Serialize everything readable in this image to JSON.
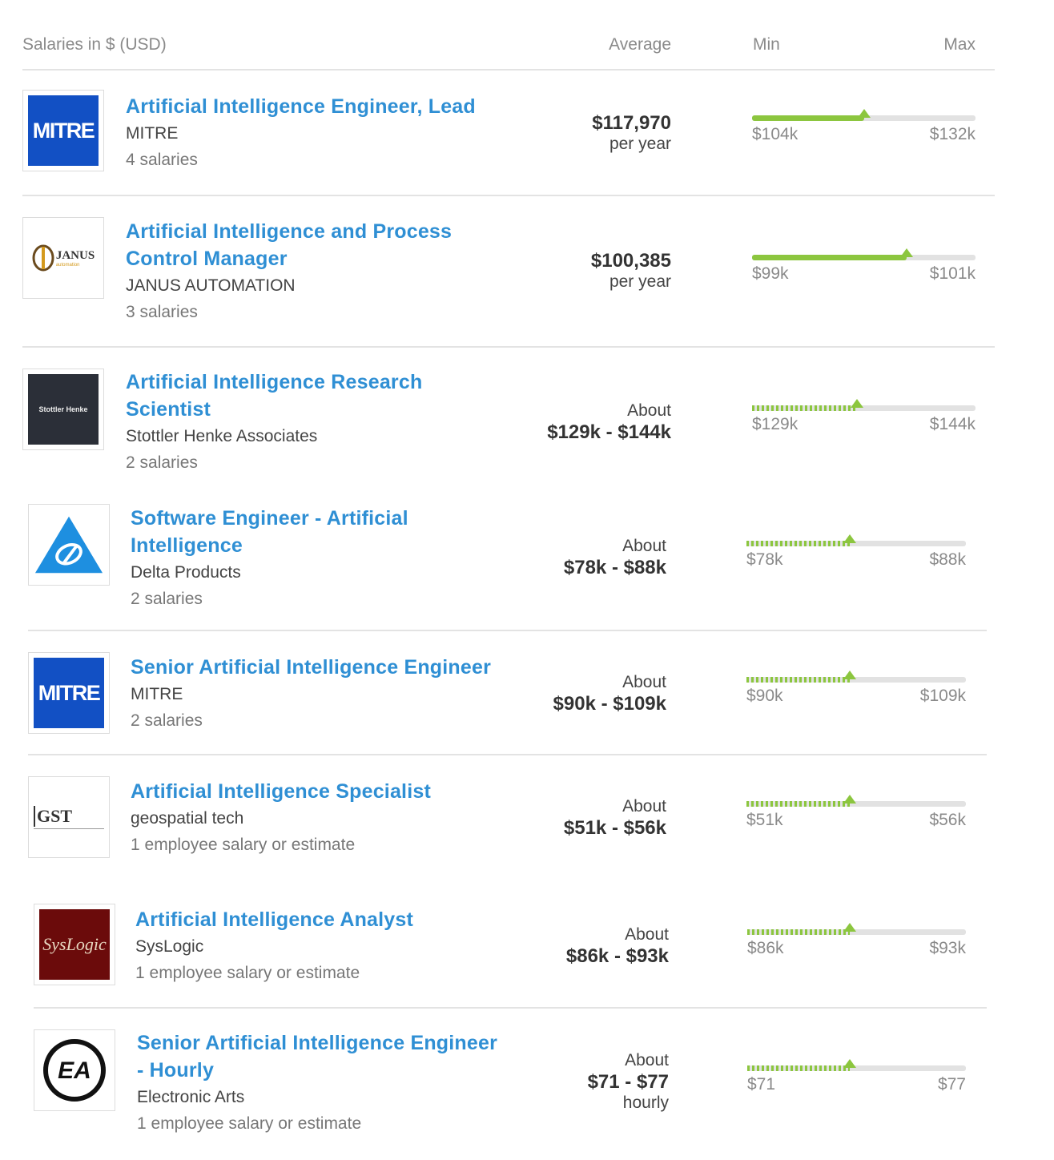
{
  "header": {
    "title": "Salaries in $ (USD)",
    "average": "Average",
    "min": "Min",
    "max": "Max"
  },
  "colors": {
    "link": "#2f8fd4",
    "bar_fill": "#8cc63f",
    "bar_track": "#e2e2e2",
    "separator": "#e3e3e3"
  },
  "rows": [
    {
      "title": [
        "Artificial Intelligence Engineer, Lead"
      ],
      "company": "MITRE",
      "count": "4 salaries",
      "about": "",
      "value": "$117,970",
      "per": "per year",
      "min": "$104k",
      "max": "$132k",
      "logo": {
        "text": "MITRE",
        "icon": "mitre-logo"
      },
      "bar": {
        "style": "solid",
        "marker": 0.5
      }
    },
    {
      "title": [
        "Artificial Intelligence and Process",
        "Control Manager"
      ],
      "company": "JANUS AUTOMATION",
      "count": "3 salaries",
      "about": "",
      "value": "$100,385",
      "per": "per year",
      "min": "$99k",
      "max": "$101k",
      "logo": {
        "text": "JANUS",
        "subtext": "automation",
        "icon": "janus-logo"
      },
      "bar": {
        "style": "solid",
        "marker": 0.69
      }
    },
    {
      "title": [
        "Artificial Intelligence Research",
        "Scientist"
      ],
      "company": "Stottler Henke Associates",
      "count": "2 salaries",
      "about": "About",
      "value": "$129k - $144k",
      "per": "",
      "min": "$129k",
      "max": "$144k",
      "logo": {
        "text": "Stottler Henke",
        "icon": "stottler-henke-logo"
      },
      "bar": {
        "style": "dotted",
        "marker": 0.47
      }
    },
    {
      "title": [
        "Software Engineer - Artificial",
        "Intelligence"
      ],
      "company": "Delta Products",
      "count": "2 salaries",
      "about": "About",
      "value": "$78k - $88k",
      "per": "",
      "min": "$78k",
      "max": "$88k",
      "logo": {
        "text": "",
        "icon": "delta-logo"
      },
      "bar": {
        "style": "dotted",
        "marker": 0.47
      }
    },
    {
      "title": [
        "Senior Artificial Intelligence Engineer"
      ],
      "company": "MITRE",
      "count": "2 salaries",
      "about": "About",
      "value": "$90k - $109k",
      "per": "",
      "min": "$90k",
      "max": "$109k",
      "logo": {
        "text": "MITRE",
        "icon": "mitre-logo"
      },
      "bar": {
        "style": "dotted",
        "marker": 0.47
      }
    },
    {
      "title": [
        "Artificial Intelligence Specialist"
      ],
      "company": "geospatial tech",
      "count": "1 employee salary or estimate",
      "about": "About",
      "value": "$51k - $56k",
      "per": "",
      "min": "$51k",
      "max": "$56k",
      "logo": {
        "text": "GST",
        "icon": "gst-logo"
      },
      "bar": {
        "style": "dotted",
        "marker": 0.47
      }
    },
    {
      "title": [
        "Artificial Intelligence Analyst"
      ],
      "company": "SysLogic",
      "count": "1 employee salary or estimate",
      "about": "About",
      "value": "$86k - $93k",
      "per": "",
      "min": "$86k",
      "max": "$93k",
      "logo": {
        "text": "SysLogic",
        "icon": "syslogic-logo"
      },
      "bar": {
        "style": "dotted",
        "marker": 0.47
      }
    },
    {
      "title": [
        "Senior Artificial Intelligence Engineer",
        "- Hourly"
      ],
      "company": "Electronic Arts",
      "count": "1 employee salary or estimate",
      "about": "About",
      "value": "$71 - $77",
      "per": "hourly",
      "min": "$71",
      "max": "$77",
      "logo": {
        "text": "EA",
        "icon": "ea-logo"
      },
      "bar": {
        "style": "dotted",
        "marker": 0.47
      }
    }
  ]
}
